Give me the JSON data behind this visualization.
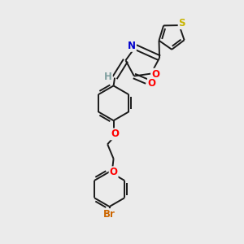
{
  "background_color": "#ebebeb",
  "bond_color": "#1a1a1a",
  "atom_colors": {
    "S": "#c8b400",
    "O": "#ff0000",
    "N": "#0000cd",
    "Br": "#cc6600",
    "H": "#7f9f9f",
    "C": "#1a1a1a"
  },
  "bond_lw": 1.4,
  "font_size": 8.5
}
